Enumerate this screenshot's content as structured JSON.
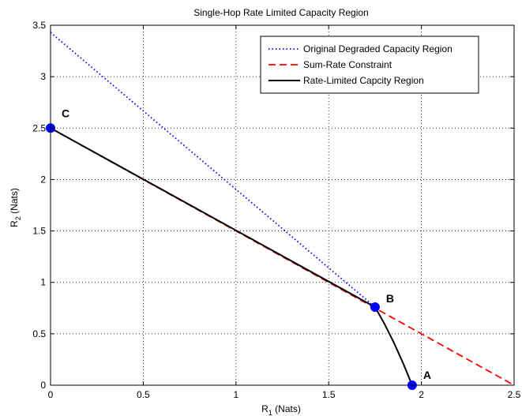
{
  "chart_data": {
    "type": "line",
    "title": "Single-Hop Rate Limited Capacity Region",
    "xlabel": {
      "main": "R",
      "sub": "1",
      "unit": " (Nats)"
    },
    "ylabel": {
      "main": "R",
      "sub": "2",
      "unit": " (Nats)"
    },
    "xlim": [
      0,
      2.5
    ],
    "ylim": [
      0,
      3.5
    ],
    "xticks": [
      0,
      0.5,
      1,
      1.5,
      2,
      2.5
    ],
    "xtick_labels": [
      "0",
      "0.5",
      "1",
      "1.5",
      "2",
      "2.5"
    ],
    "yticks": [
      0,
      0.5,
      1,
      1.5,
      2,
      2.5,
      3,
      3.5
    ],
    "ytick_labels": [
      "0",
      "0.5",
      "1",
      "1.5",
      "2",
      "2.5",
      "3",
      "3.5"
    ],
    "grid": true,
    "legend_position": "top-right",
    "series": [
      {
        "name": "Original Degraded Capacity Region",
        "color": "#0000ff",
        "style": "dotted",
        "x": [
          0,
          1.75
        ],
        "y": [
          3.43,
          0.76
        ]
      },
      {
        "name": "Sum-Rate Constraint",
        "color": "#ff0000",
        "style": "dashed",
        "x": [
          0,
          2.5
        ],
        "y": [
          2.5,
          0
        ]
      },
      {
        "name": "Rate-Limited  Capcity Region",
        "color": "#000000",
        "style": "solid",
        "x": [
          0,
          1.75,
          1.8,
          1.85,
          1.9,
          1.95
        ],
        "y": [
          2.5,
          0.76,
          0.6,
          0.42,
          0.22,
          0
        ]
      }
    ],
    "points": [
      {
        "label": "C",
        "x": 0,
        "y": 2.5
      },
      {
        "label": "B",
        "x": 1.75,
        "y": 0.76
      },
      {
        "label": "A",
        "x": 1.95,
        "y": 0
      }
    ],
    "point_color": "#0000ff"
  }
}
